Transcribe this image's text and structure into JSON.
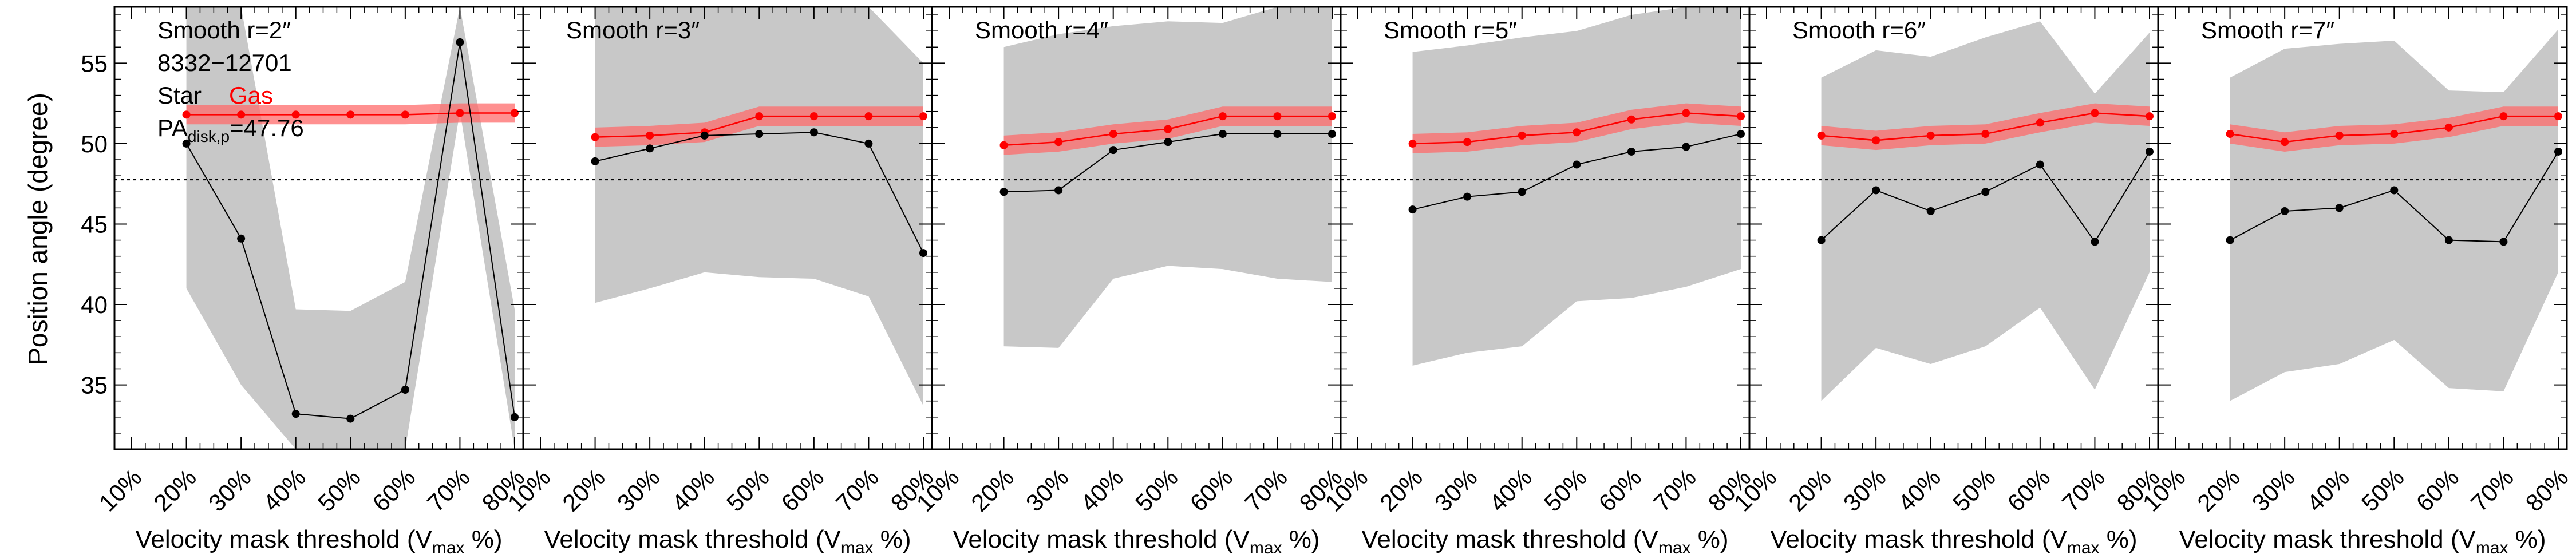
{
  "figure": {
    "ylabel": "Position angle (degree)",
    "xlabel_main": "Velocity mask threshold (V",
    "xlabel_sub": "max",
    "xlabel_tail": " %)",
    "legend": {
      "object_id": "8332−12701",
      "star_label": "Star",
      "gas_label": "Gas",
      "pa_main": "PA",
      "pa_sub": "disk,p",
      "pa_value": "=47.76"
    }
  },
  "chart_data": {
    "type": "line",
    "x_categories": [
      "10%",
      "20%",
      "30%",
      "40%",
      "50%",
      "60%",
      "70%",
      "80%"
    ],
    "ylim": [
      31,
      58.5
    ],
    "yticks": [
      35,
      40,
      45,
      50,
      55
    ],
    "reference_line": 47.76,
    "colors": {
      "star": "#000000",
      "gas": "#ff0000",
      "gas_band": "#ff6b6b",
      "star_band": "#c8c8c8"
    },
    "panels": [
      {
        "title": "Smooth r=2″",
        "star": [
          null,
          50.0,
          44.1,
          33.2,
          32.9,
          34.7,
          56.3,
          33.0
        ],
        "star_lo": [
          null,
          41.0,
          35.0,
          31.0,
          31.0,
          31.0,
          52.0,
          31.0
        ],
        "star_hi": [
          null,
          58.5,
          58.5,
          39.7,
          39.6,
          41.4,
          58.5,
          39.7
        ],
        "gas": [
          null,
          51.8,
          51.8,
          51.8,
          51.8,
          51.8,
          51.9,
          51.9
        ],
        "gas_err": 0.6
      },
      {
        "title": "Smooth r=3″",
        "star": [
          null,
          48.9,
          49.7,
          50.5,
          50.6,
          50.7,
          50.0,
          43.2
        ],
        "star_lo": [
          null,
          40.1,
          41.0,
          42.0,
          41.7,
          41.6,
          40.5,
          33.7
        ],
        "star_hi": [
          null,
          58.5,
          58.5,
          58.5,
          58.5,
          58.5,
          58.5,
          55.0
        ],
        "gas": [
          null,
          50.4,
          50.5,
          50.7,
          51.7,
          51.7,
          51.7,
          51.7
        ],
        "gas_err": 0.6
      },
      {
        "title": "Smooth r=4″",
        "star": [
          null,
          47.0,
          47.1,
          49.6,
          50.1,
          50.6,
          50.6,
          50.6
        ],
        "star_lo": [
          null,
          37.4,
          37.3,
          41.6,
          42.4,
          42.2,
          41.6,
          41.4
        ],
        "star_hi": [
          null,
          56.0,
          56.8,
          57.3,
          57.6,
          57.5,
          58.5,
          58.5
        ],
        "gas": [
          null,
          49.9,
          50.1,
          50.6,
          50.9,
          51.7,
          51.7,
          51.7
        ],
        "gas_err": 0.6
      },
      {
        "title": "Smooth r=5″",
        "star": [
          null,
          45.9,
          46.7,
          47.0,
          48.7,
          49.5,
          49.8,
          50.6
        ],
        "star_lo": [
          null,
          36.2,
          37.0,
          37.4,
          40.2,
          40.4,
          41.1,
          42.2
        ],
        "star_hi": [
          null,
          55.7,
          56.1,
          56.6,
          57.0,
          58.0,
          58.5,
          58.5
        ],
        "gas": [
          null,
          50.0,
          50.1,
          50.5,
          50.7,
          51.5,
          51.9,
          51.7
        ],
        "gas_err": 0.6
      },
      {
        "title": "Smooth r=6″",
        "star": [
          null,
          44.0,
          47.1,
          45.8,
          47.0,
          48.7,
          43.9,
          49.5
        ],
        "star_lo": [
          null,
          34.0,
          37.3,
          36.3,
          37.4,
          39.8,
          34.7,
          42.0
        ],
        "star_hi": [
          null,
          54.1,
          55.8,
          55.4,
          56.6,
          57.6,
          53.1,
          56.9
        ],
        "gas": [
          null,
          50.5,
          50.2,
          50.5,
          50.6,
          51.3,
          51.9,
          51.7
        ],
        "gas_err": 0.6
      },
      {
        "title": "Smooth r=7″",
        "star": [
          null,
          44.0,
          45.8,
          46.0,
          47.1,
          44.0,
          43.9,
          49.5
        ],
        "star_lo": [
          null,
          34.0,
          35.8,
          36.3,
          37.8,
          34.8,
          34.6,
          42.0
        ],
        "star_hi": [
          null,
          54.1,
          55.9,
          56.2,
          56.4,
          53.3,
          53.2,
          57.1
        ],
        "gas": [
          null,
          50.6,
          50.1,
          50.5,
          50.6,
          51.0,
          51.7,
          51.7
        ],
        "gas_err": 0.6
      }
    ]
  }
}
